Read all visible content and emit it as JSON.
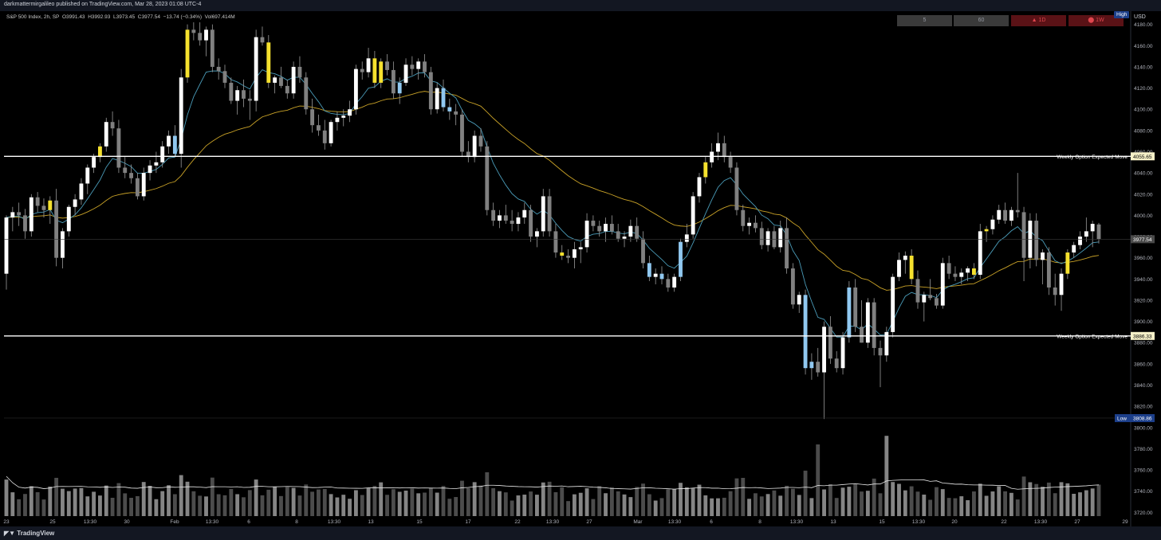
{
  "header": {
    "publish_line": "darkmattermirgalileo published on TradingView.com, Mar 28, 2023 01:08 UTC-4"
  },
  "legend": {
    "symbol": "S&P 500 Index, 2h, SP",
    "open": "O3991.43",
    "high": "H3992.93",
    "low": "L3973.45",
    "close": "C3977.54",
    "change": "−13.74 (−0.34%)",
    "volume": "Vol697.414M"
  },
  "timeframes": [
    {
      "label": "5",
      "style": "gray"
    },
    {
      "label": "60",
      "style": "gray"
    },
    {
      "label": "▲ 1D",
      "style": "red"
    },
    {
      "label": "⬤ 1W",
      "style": "red"
    }
  ],
  "axis": {
    "currency": "USD",
    "high_badge": "High",
    "low_badge": "Low",
    "low_value": "3808.86",
    "last_price": "3977.54"
  },
  "footer": {
    "brand": "TradingView"
  },
  "colors": {
    "bull": "#ffffff",
    "bear": "#808080",
    "highlight_blue": "#90c8f0",
    "highlight_yellow": "#f5e12e",
    "ema_fast": "#4a9bb8",
    "ema_slow": "#c9a227",
    "level_line": "#ffffff"
  },
  "chart_data": {
    "type": "candlestick",
    "y_ticks": [
      "4180.00",
      "4160.00",
      "4140.00",
      "4120.00",
      "4100.00",
      "4080.00",
      "4060.00",
      "4040.00",
      "4020.00",
      "4000.00",
      "3980.00",
      "3960.00",
      "3940.00",
      "3920.00",
      "3900.00",
      "3880.00",
      "3860.00",
      "3840.00",
      "3820.00",
      "3800.00",
      "3780.00",
      "3760.00",
      "3740.00",
      "3720.00"
    ],
    "ylim": [
      3715,
      4185
    ],
    "x_ticks": [
      "23",
      "25",
      "13:30",
      "30",
      "Feb",
      "13:30",
      "6",
      "8",
      "13:30",
      "13",
      "15",
      "17",
      "22",
      "13:30",
      "27",
      "Mar",
      "13:30",
      "6",
      "8",
      "13:30",
      "13",
      "15",
      "13:30",
      "20",
      "22",
      "13:30",
      "27",
      "29"
    ],
    "levels": [
      {
        "label": "Weekly Option Expected Move",
        "value": 4055.65,
        "tag": "4055.65"
      },
      {
        "label": "Weekly Option Expected Move",
        "value": 3886.33,
        "tag": "3886.33"
      }
    ],
    "candles": [
      {
        "o": 3945,
        "h": 4000,
        "l": 3930,
        "c": 3998
      },
      {
        "o": 3998,
        "h": 4008,
        "l": 3985,
        "c": 4003
      },
      {
        "o": 4003,
        "h": 4012,
        "l": 3990,
        "c": 4000
      },
      {
        "o": 4000,
        "h": 4006,
        "l": 3978,
        "c": 3985
      },
      {
        "o": 3985,
        "h": 4020,
        "l": 3980,
        "c": 4017
      },
      {
        "o": 4017,
        "h": 4022,
        "l": 4003,
        "c": 4009
      },
      {
        "o": 4009,
        "h": 4016,
        "l": 3998,
        "c": 4005
      },
      {
        "o": 4005,
        "h": 4018,
        "l": 3992,
        "c": 4014
      },
      {
        "o": 4014,
        "h": 4025,
        "l": 3952,
        "c": 3960
      },
      {
        "o": 3960,
        "h": 3988,
        "l": 3950,
        "c": 3985
      },
      {
        "o": 3985,
        "h": 4010,
        "l": 3980,
        "c": 4008
      },
      {
        "o": 4008,
        "h": 4020,
        "l": 4000,
        "c": 4015
      },
      {
        "o": 4015,
        "h": 4035,
        "l": 4010,
        "c": 4030
      },
      {
        "o": 4030,
        "h": 4048,
        "l": 4020,
        "c": 4045
      },
      {
        "o": 4045,
        "h": 4058,
        "l": 4040,
        "c": 4055
      },
      {
        "o": 4055,
        "h": 4068,
        "l": 4050,
        "c": 4065
      },
      {
        "o": 4065,
        "h": 4092,
        "l": 4060,
        "c": 4088
      },
      {
        "o": 4088,
        "h": 4098,
        "l": 4075,
        "c": 4082
      },
      {
        "o": 4082,
        "h": 4090,
        "l": 4040,
        "c": 4045
      },
      {
        "o": 4045,
        "h": 4055,
        "l": 4035,
        "c": 4040
      },
      {
        "o": 4040,
        "h": 4048,
        "l": 4030,
        "c": 4035
      },
      {
        "o": 4035,
        "h": 4040,
        "l": 4015,
        "c": 4018
      },
      {
        "o": 4018,
        "h": 4045,
        "l": 4014,
        "c": 4040
      },
      {
        "o": 4040,
        "h": 4052,
        "l": 4033,
        "c": 4047
      },
      {
        "o": 4047,
        "h": 4060,
        "l": 4040,
        "c": 4050
      },
      {
        "o": 4050,
        "h": 4070,
        "l": 4045,
        "c": 4065
      },
      {
        "o": 4065,
        "h": 4080,
        "l": 4058,
        "c": 4075
      },
      {
        "o": 4075,
        "h": 4085,
        "l": 4055,
        "c": 4058
      },
      {
        "o": 4058,
        "h": 4138,
        "l": 4045,
        "c": 4130
      },
      {
        "o": 4130,
        "h": 4180,
        "l": 4125,
        "c": 4175
      },
      {
        "o": 4175,
        "h": 4182,
        "l": 4165,
        "c": 4172
      },
      {
        "o": 4172,
        "h": 4182,
        "l": 4160,
        "c": 4165
      },
      {
        "o": 4165,
        "h": 4178,
        "l": 4150,
        "c": 4175
      },
      {
        "o": 4175,
        "h": 4180,
        "l": 4135,
        "c": 4140
      },
      {
        "o": 4140,
        "h": 4148,
        "l": 4128,
        "c": 4136
      },
      {
        "o": 4136,
        "h": 4142,
        "l": 4120,
        "c": 4125
      },
      {
        "o": 4125,
        "h": 4130,
        "l": 4105,
        "c": 4108
      },
      {
        "o": 4108,
        "h": 4122,
        "l": 4095,
        "c": 4118
      },
      {
        "o": 4118,
        "h": 4128,
        "l": 4102,
        "c": 4110
      },
      {
        "o": 4110,
        "h": 4118,
        "l": 4090,
        "c": 4108
      },
      {
        "o": 4108,
        "h": 4175,
        "l": 4098,
        "c": 4168
      },
      {
        "o": 4168,
        "h": 4178,
        "l": 4160,
        "c": 4163
      },
      {
        "o": 4163,
        "h": 4170,
        "l": 4120,
        "c": 4125
      },
      {
        "o": 4125,
        "h": 4132,
        "l": 4115,
        "c": 4130
      },
      {
        "o": 4130,
        "h": 4140,
        "l": 4120,
        "c": 4122
      },
      {
        "o": 4122,
        "h": 4128,
        "l": 4110,
        "c": 4115
      },
      {
        "o": 4115,
        "h": 4145,
        "l": 4110,
        "c": 4140
      },
      {
        "o": 4140,
        "h": 4150,
        "l": 4125,
        "c": 4130
      },
      {
        "o": 4130,
        "h": 4135,
        "l": 4095,
        "c": 4100
      },
      {
        "o": 4100,
        "h": 4110,
        "l": 4078,
        "c": 4085
      },
      {
        "o": 4085,
        "h": 4095,
        "l": 4075,
        "c": 4080
      },
      {
        "o": 4080,
        "h": 4090,
        "l": 4062,
        "c": 4068
      },
      {
        "o": 4068,
        "h": 4090,
        "l": 4065,
        "c": 4088
      },
      {
        "o": 4088,
        "h": 4098,
        "l": 4080,
        "c": 4092
      },
      {
        "o": 4092,
        "h": 4100,
        "l": 4084,
        "c": 4094
      },
      {
        "o": 4094,
        "h": 4108,
        "l": 4088,
        "c": 4100
      },
      {
        "o": 4100,
        "h": 4142,
        "l": 4095,
        "c": 4138
      },
      {
        "o": 4138,
        "h": 4145,
        "l": 4128,
        "c": 4135
      },
      {
        "o": 4135,
        "h": 4158,
        "l": 4130,
        "c": 4148
      },
      {
        "o": 4148,
        "h": 4155,
        "l": 4120,
        "c": 4125
      },
      {
        "o": 4125,
        "h": 4148,
        "l": 4120,
        "c": 4145
      },
      {
        "o": 4145,
        "h": 4152,
        "l": 4132,
        "c": 4137
      },
      {
        "o": 4137,
        "h": 4145,
        "l": 4110,
        "c": 4115
      },
      {
        "o": 4115,
        "h": 4130,
        "l": 4105,
        "c": 4125
      },
      {
        "o": 4125,
        "h": 4148,
        "l": 4122,
        "c": 4142
      },
      {
        "o": 4142,
        "h": 4150,
        "l": 4132,
        "c": 4138
      },
      {
        "o": 4138,
        "h": 4148,
        "l": 4128,
        "c": 4145
      },
      {
        "o": 4145,
        "h": 4152,
        "l": 4130,
        "c": 4135
      },
      {
        "o": 4135,
        "h": 4140,
        "l": 4095,
        "c": 4100
      },
      {
        "o": 4100,
        "h": 4125,
        "l": 4096,
        "c": 4120
      },
      {
        "o": 4120,
        "h": 4128,
        "l": 4098,
        "c": 4102
      },
      {
        "o": 4102,
        "h": 4110,
        "l": 4090,
        "c": 4098
      },
      {
        "o": 4098,
        "h": 4105,
        "l": 4085,
        "c": 4095
      },
      {
        "o": 4095,
        "h": 4100,
        "l": 4055,
        "c": 4060
      },
      {
        "o": 4060,
        "h": 4070,
        "l": 4050,
        "c": 4055
      },
      {
        "o": 4055,
        "h": 4080,
        "l": 4050,
        "c": 4075
      },
      {
        "o": 4075,
        "h": 4082,
        "l": 4060,
        "c": 4065
      },
      {
        "o": 4065,
        "h": 4070,
        "l": 4000,
        "c": 4005
      },
      {
        "o": 4005,
        "h": 4012,
        "l": 3990,
        "c": 3995
      },
      {
        "o": 3995,
        "h": 4005,
        "l": 3988,
        "c": 4000
      },
      {
        "o": 4000,
        "h": 4010,
        "l": 3992,
        "c": 3995
      },
      {
        "o": 3995,
        "h": 4005,
        "l": 3985,
        "c": 3992
      },
      {
        "o": 3992,
        "h": 4003,
        "l": 3985,
        "c": 3998
      },
      {
        "o": 3998,
        "h": 4012,
        "l": 3992,
        "c": 4005
      },
      {
        "o": 4005,
        "h": 4010,
        "l": 3975,
        "c": 3980
      },
      {
        "o": 3980,
        "h": 3988,
        "l": 3970,
        "c": 3985
      },
      {
        "o": 3985,
        "h": 4025,
        "l": 3980,
        "c": 4018
      },
      {
        "o": 4018,
        "h": 4025,
        "l": 3980,
        "c": 3985
      },
      {
        "o": 3985,
        "h": 3992,
        "l": 3960,
        "c": 3965
      },
      {
        "o": 3965,
        "h": 3972,
        "l": 3958,
        "c": 3962
      },
      {
        "o": 3962,
        "h": 3968,
        "l": 3955,
        "c": 3960
      },
      {
        "o": 3960,
        "h": 3975,
        "l": 3950,
        "c": 3968
      },
      {
        "o": 3968,
        "h": 3975,
        "l": 3955,
        "c": 3970
      },
      {
        "o": 3970,
        "h": 4002,
        "l": 3965,
        "c": 3995
      },
      {
        "o": 3995,
        "h": 4000,
        "l": 3985,
        "c": 3990
      },
      {
        "o": 3990,
        "h": 3995,
        "l": 3980,
        "c": 3985
      },
      {
        "o": 3985,
        "h": 3998,
        "l": 3975,
        "c": 3992
      },
      {
        "o": 3992,
        "h": 4000,
        "l": 3982,
        "c": 3985
      },
      {
        "o": 3985,
        "h": 3992,
        "l": 3975,
        "c": 3978
      },
      {
        "o": 3978,
        "h": 3985,
        "l": 3970,
        "c": 3980
      },
      {
        "o": 3980,
        "h": 3996,
        "l": 3975,
        "c": 3990
      },
      {
        "o": 3990,
        "h": 3998,
        "l": 3975,
        "c": 3978
      },
      {
        "o": 3978,
        "h": 3985,
        "l": 3950,
        "c": 3955
      },
      {
        "o": 3955,
        "h": 3962,
        "l": 3938,
        "c": 3942
      },
      {
        "o": 3942,
        "h": 3950,
        "l": 3935,
        "c": 3945
      },
      {
        "o": 3945,
        "h": 3952,
        "l": 3935,
        "c": 3940
      },
      {
        "o": 3940,
        "h": 3945,
        "l": 3928,
        "c": 3932
      },
      {
        "o": 3932,
        "h": 3945,
        "l": 3928,
        "c": 3942
      },
      {
        "o": 3942,
        "h": 3978,
        "l": 3938,
        "c": 3975
      },
      {
        "o": 3975,
        "h": 3992,
        "l": 3970,
        "c": 3982
      },
      {
        "o": 3982,
        "h": 4022,
        "l": 3978,
        "c": 4018
      },
      {
        "o": 4018,
        "h": 4040,
        "l": 4012,
        "c": 4036
      },
      {
        "o": 4036,
        "h": 4055,
        "l": 4030,
        "c": 4050
      },
      {
        "o": 4050,
        "h": 4068,
        "l": 4045,
        "c": 4060
      },
      {
        "o": 4060,
        "h": 4078,
        "l": 4052,
        "c": 4068
      },
      {
        "o": 4068,
        "h": 4075,
        "l": 4050,
        "c": 4055
      },
      {
        "o": 4055,
        "h": 4060,
        "l": 4040,
        "c": 4045
      },
      {
        "o": 4045,
        "h": 4050,
        "l": 4000,
        "c": 4005
      },
      {
        "o": 4005,
        "h": 4010,
        "l": 3985,
        "c": 3990
      },
      {
        "o": 3990,
        "h": 3998,
        "l": 3982,
        "c": 3993
      },
      {
        "o": 3993,
        "h": 4000,
        "l": 3984,
        "c": 3988
      },
      {
        "o": 3988,
        "h": 3994,
        "l": 3968,
        "c": 3972
      },
      {
        "o": 3972,
        "h": 3988,
        "l": 3966,
        "c": 3985
      },
      {
        "o": 3985,
        "h": 3990,
        "l": 3968,
        "c": 3970
      },
      {
        "o": 3970,
        "h": 3995,
        "l": 3965,
        "c": 3988
      },
      {
        "o": 3988,
        "h": 3998,
        "l": 3945,
        "c": 3950
      },
      {
        "o": 3950,
        "h": 3955,
        "l": 3912,
        "c": 3916
      },
      {
        "o": 3916,
        "h": 3928,
        "l": 3908,
        "c": 3925
      },
      {
        "o": 3925,
        "h": 3930,
        "l": 3850,
        "c": 3856
      },
      {
        "o": 3856,
        "h": 3870,
        "l": 3845,
        "c": 3862
      },
      {
        "o": 3862,
        "h": 3875,
        "l": 3848,
        "c": 3852
      },
      {
        "o": 3852,
        "h": 3900,
        "l": 3808,
        "c": 3895
      },
      {
        "o": 3895,
        "h": 3905,
        "l": 3860,
        "c": 3865
      },
      {
        "o": 3865,
        "h": 3872,
        "l": 3852,
        "c": 3856
      },
      {
        "o": 3856,
        "h": 3890,
        "l": 3850,
        "c": 3885
      },
      {
        "o": 3885,
        "h": 3938,
        "l": 3880,
        "c": 3932
      },
      {
        "o": 3932,
        "h": 3940,
        "l": 3890,
        "c": 3895
      },
      {
        "o": 3895,
        "h": 3920,
        "l": 3880,
        "c": 3880
      },
      {
        "o": 3880,
        "h": 3922,
        "l": 3875,
        "c": 3918
      },
      {
        "o": 3918,
        "h": 3922,
        "l": 3868,
        "c": 3875
      },
      {
        "o": 3875,
        "h": 3882,
        "l": 3838,
        "c": 3868
      },
      {
        "o": 3868,
        "h": 3895,
        "l": 3862,
        "c": 3890
      },
      {
        "o": 3890,
        "h": 3945,
        "l": 3885,
        "c": 3942
      },
      {
        "o": 3942,
        "h": 3965,
        "l": 3938,
        "c": 3958
      },
      {
        "o": 3958,
        "h": 3966,
        "l": 3945,
        "c": 3962
      },
      {
        "o": 3962,
        "h": 3968,
        "l": 3935,
        "c": 3940
      },
      {
        "o": 3940,
        "h": 3948,
        "l": 3912,
        "c": 3918
      },
      {
        "o": 3918,
        "h": 3928,
        "l": 3900,
        "c": 3925
      },
      {
        "o": 3925,
        "h": 3940,
        "l": 3920,
        "c": 3922
      },
      {
        "o": 3922,
        "h": 3926,
        "l": 3912,
        "c": 3915
      },
      {
        "o": 3915,
        "h": 3960,
        "l": 3912,
        "c": 3955
      },
      {
        "o": 3955,
        "h": 3962,
        "l": 3940,
        "c": 3945
      },
      {
        "o": 3945,
        "h": 3952,
        "l": 3938,
        "c": 3942
      },
      {
        "o": 3942,
        "h": 3950,
        "l": 3935,
        "c": 3946
      },
      {
        "o": 3946,
        "h": 3952,
        "l": 3938,
        "c": 3950
      },
      {
        "o": 3950,
        "h": 3955,
        "l": 3940,
        "c": 3944
      },
      {
        "o": 3944,
        "h": 3992,
        "l": 3940,
        "c": 3985
      },
      {
        "o": 3985,
        "h": 3990,
        "l": 3975,
        "c": 3987
      },
      {
        "o": 3987,
        "h": 4000,
        "l": 3982,
        "c": 3996
      },
      {
        "o": 3996,
        "h": 4010,
        "l": 3992,
        "c": 4005
      },
      {
        "o": 4005,
        "h": 4012,
        "l": 3992,
        "c": 3995
      },
      {
        "o": 3995,
        "h": 4008,
        "l": 3990,
        "c": 4005
      },
      {
        "o": 4005,
        "h": 4040,
        "l": 3998,
        "c": 4003
      },
      {
        "o": 4003,
        "h": 4008,
        "l": 3938,
        "c": 3960
      },
      {
        "o": 3960,
        "h": 4002,
        "l": 3950,
        "c": 3995
      },
      {
        "o": 3995,
        "h": 4002,
        "l": 3952,
        "c": 3958
      },
      {
        "o": 3958,
        "h": 3968,
        "l": 3935,
        "c": 3965
      },
      {
        "o": 3965,
        "h": 3970,
        "l": 3925,
        "c": 3932
      },
      {
        "o": 3932,
        "h": 3945,
        "l": 3915,
        "c": 3925
      },
      {
        "o": 3925,
        "h": 3950,
        "l": 3910,
        "c": 3945
      },
      {
        "o": 3945,
        "h": 3968,
        "l": 3940,
        "c": 3965
      },
      {
        "o": 3965,
        "h": 3975,
        "l": 3960,
        "c": 3972
      },
      {
        "o": 3972,
        "h": 3985,
        "l": 3968,
        "c": 3980
      },
      {
        "o": 3980,
        "h": 3998,
        "l": 3975,
        "c": 3985
      },
      {
        "o": 3985,
        "h": 3995,
        "l": 3970,
        "c": 3992
      },
      {
        "o": 3991.43,
        "h": 3992.93,
        "l": 3973.45,
        "c": 3977.54
      }
    ],
    "volume_note": "Volume histogram below price; white line is volume moving average"
  }
}
